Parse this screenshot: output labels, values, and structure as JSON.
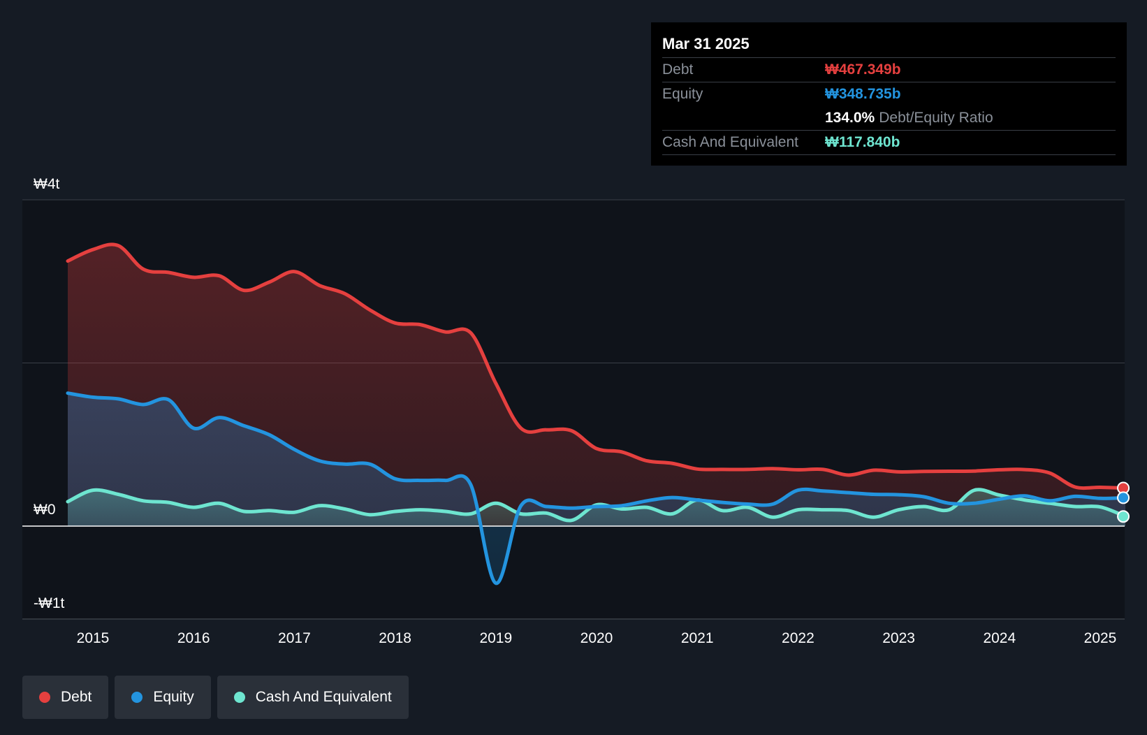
{
  "tooltip": {
    "date": "Mar 31 2025",
    "debt_label": "Debt",
    "debt_value": "₩467.349b",
    "equity_label": "Equity",
    "equity_value": "₩348.735b",
    "ratio_value": "134.0%",
    "ratio_label": "Debt/Equity Ratio",
    "cash_label": "Cash And Equivalent",
    "cash_value": "₩117.840b"
  },
  "legend": {
    "debt": "Debt",
    "equity": "Equity",
    "cash": "Cash And Equivalent"
  },
  "colors": {
    "debt": "#e5403f",
    "equity": "#2394df",
    "cash": "#6ee5d0",
    "background": "#151b24",
    "plot_background": "#0f131a"
  },
  "chart_data": {
    "type": "area",
    "ylim": [
      -1000,
      4000
    ],
    "xlim": [
      2014.5,
      2025.25
    ],
    "y_ticks": [
      {
        "value": 4000,
        "label": "₩4t"
      },
      {
        "value": 0,
        "label": "₩0"
      },
      {
        "value": -1000,
        "label": "-₩1t"
      }
    ],
    "gridlines": [
      4000,
      2000
    ],
    "x_ticks": [
      {
        "value": 2015,
        "label": "2015"
      },
      {
        "value": 2016,
        "label": "2016"
      },
      {
        "value": 2017,
        "label": "2017"
      },
      {
        "value": 2018,
        "label": "2018"
      },
      {
        "value": 2019,
        "label": "2019"
      },
      {
        "value": 2020,
        "label": "2020"
      },
      {
        "value": 2021,
        "label": "2021"
      },
      {
        "value": 2022,
        "label": "2022"
      },
      {
        "value": 2023,
        "label": "2023"
      },
      {
        "value": 2024,
        "label": "2024"
      },
      {
        "value": 2025,
        "label": "2025"
      }
    ],
    "series": [
      {
        "name": "Debt",
        "color": "#e5403f",
        "points": [
          [
            2014.75,
            3250
          ],
          [
            2015.0,
            3390
          ],
          [
            2015.25,
            3440
          ],
          [
            2015.5,
            3150
          ],
          [
            2015.75,
            3110
          ],
          [
            2016.0,
            3050
          ],
          [
            2016.25,
            3070
          ],
          [
            2016.5,
            2890
          ],
          [
            2016.75,
            2990
          ],
          [
            2017.0,
            3120
          ],
          [
            2017.25,
            2950
          ],
          [
            2017.5,
            2850
          ],
          [
            2017.75,
            2650
          ],
          [
            2018.0,
            2490
          ],
          [
            2018.25,
            2470
          ],
          [
            2018.5,
            2380
          ],
          [
            2018.75,
            2370
          ],
          [
            2019.0,
            1750
          ],
          [
            2019.25,
            1200
          ],
          [
            2019.5,
            1180
          ],
          [
            2019.75,
            1170
          ],
          [
            2020.0,
            950
          ],
          [
            2020.25,
            910
          ],
          [
            2020.5,
            800
          ],
          [
            2020.75,
            770
          ],
          [
            2021.0,
            700
          ],
          [
            2021.25,
            695
          ],
          [
            2021.5,
            695
          ],
          [
            2021.75,
            705
          ],
          [
            2022.0,
            690
          ],
          [
            2022.25,
            695
          ],
          [
            2022.5,
            625
          ],
          [
            2022.75,
            685
          ],
          [
            2023.0,
            665
          ],
          [
            2023.25,
            670
          ],
          [
            2023.5,
            672
          ],
          [
            2023.75,
            675
          ],
          [
            2024.0,
            690
          ],
          [
            2024.25,
            693
          ],
          [
            2024.5,
            650
          ],
          [
            2024.75,
            480
          ],
          [
            2025.0,
            475
          ],
          [
            2025.25,
            467
          ]
        ]
      },
      {
        "name": "Equity",
        "color": "#2394df",
        "points": [
          [
            2014.75,
            1630
          ],
          [
            2015.0,
            1580
          ],
          [
            2015.25,
            1560
          ],
          [
            2015.5,
            1490
          ],
          [
            2015.75,
            1550
          ],
          [
            2016.0,
            1200
          ],
          [
            2016.25,
            1330
          ],
          [
            2016.5,
            1230
          ],
          [
            2016.75,
            1120
          ],
          [
            2017.0,
            940
          ],
          [
            2017.25,
            800
          ],
          [
            2017.5,
            760
          ],
          [
            2017.75,
            760
          ],
          [
            2018.0,
            580
          ],
          [
            2018.25,
            560
          ],
          [
            2018.5,
            560
          ],
          [
            2018.75,
            510
          ],
          [
            2019.0,
            -700
          ],
          [
            2019.25,
            250
          ],
          [
            2019.5,
            240
          ],
          [
            2019.75,
            220
          ],
          [
            2020.0,
            240
          ],
          [
            2020.25,
            250
          ],
          [
            2020.5,
            310
          ],
          [
            2020.75,
            350
          ],
          [
            2021.0,
            320
          ],
          [
            2021.25,
            290
          ],
          [
            2021.5,
            270
          ],
          [
            2021.75,
            270
          ],
          [
            2022.0,
            440
          ],
          [
            2022.25,
            430
          ],
          [
            2022.5,
            410
          ],
          [
            2022.75,
            390
          ],
          [
            2023.0,
            385
          ],
          [
            2023.25,
            360
          ],
          [
            2023.5,
            280
          ],
          [
            2023.75,
            280
          ],
          [
            2024.0,
            330
          ],
          [
            2024.25,
            370
          ],
          [
            2024.5,
            310
          ],
          [
            2024.75,
            365
          ],
          [
            2025.0,
            340
          ],
          [
            2025.25,
            348
          ]
        ]
      },
      {
        "name": "Cash And Equivalent",
        "color": "#6ee5d0",
        "points": [
          [
            2014.75,
            300
          ],
          [
            2015.0,
            440
          ],
          [
            2015.25,
            390
          ],
          [
            2015.5,
            310
          ],
          [
            2015.75,
            290
          ],
          [
            2016.0,
            230
          ],
          [
            2016.25,
            280
          ],
          [
            2016.5,
            180
          ],
          [
            2016.75,
            190
          ],
          [
            2017.0,
            170
          ],
          [
            2017.25,
            250
          ],
          [
            2017.5,
            210
          ],
          [
            2017.75,
            140
          ],
          [
            2018.0,
            180
          ],
          [
            2018.25,
            200
          ],
          [
            2018.5,
            180
          ],
          [
            2018.75,
            150
          ],
          [
            2019.0,
            280
          ],
          [
            2019.25,
            150
          ],
          [
            2019.5,
            160
          ],
          [
            2019.75,
            70
          ],
          [
            2020.0,
            260
          ],
          [
            2020.25,
            210
          ],
          [
            2020.5,
            230
          ],
          [
            2020.75,
            150
          ],
          [
            2021.0,
            320
          ],
          [
            2021.25,
            190
          ],
          [
            2021.5,
            230
          ],
          [
            2021.75,
            110
          ],
          [
            2022.0,
            200
          ],
          [
            2022.25,
            200
          ],
          [
            2022.5,
            190
          ],
          [
            2022.75,
            110
          ],
          [
            2023.0,
            200
          ],
          [
            2023.25,
            240
          ],
          [
            2023.5,
            200
          ],
          [
            2023.75,
            440
          ],
          [
            2024.0,
            380
          ],
          [
            2024.25,
            320
          ],
          [
            2024.5,
            280
          ],
          [
            2024.75,
            240
          ],
          [
            2025.0,
            235
          ],
          [
            2025.25,
            118
          ]
        ]
      }
    ]
  }
}
